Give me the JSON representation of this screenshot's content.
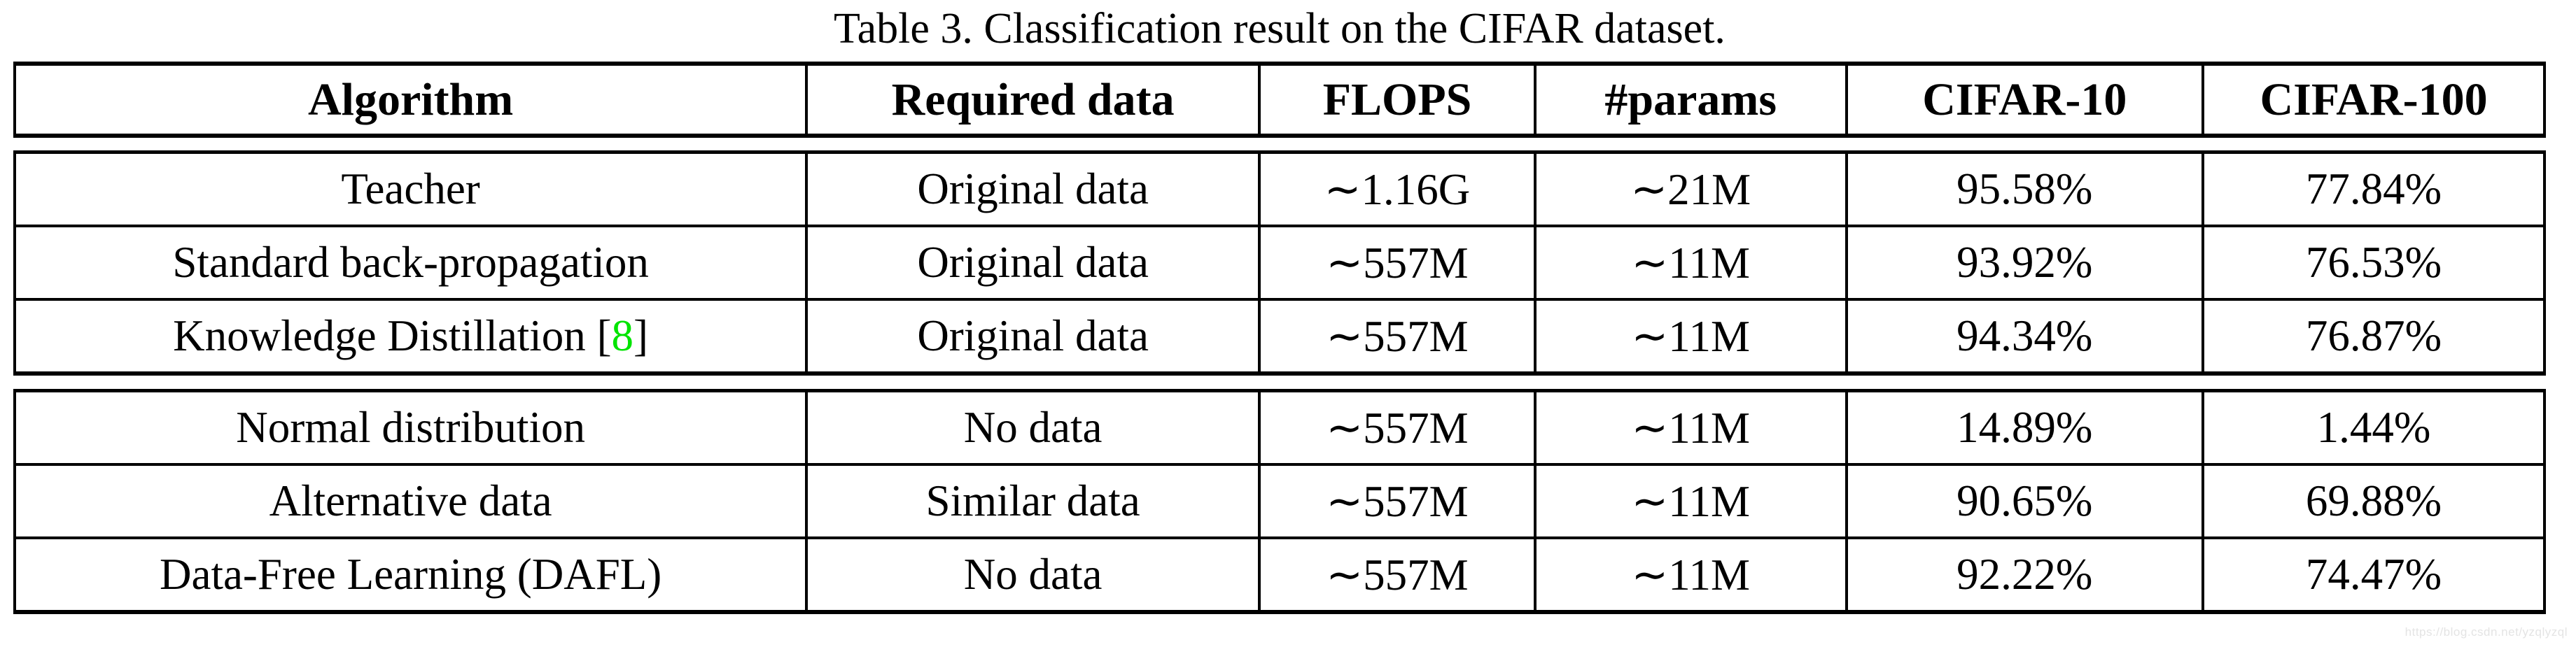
{
  "title": "Table 3. Classification result on the CIFAR dataset.",
  "watermark": "https://blog.csdn.net/yzqlyzql",
  "colors": {
    "text": "#000000",
    "citation": "#00e400",
    "watermark": "#e4e4e4",
    "border": "#000000"
  },
  "table": {
    "columns": [
      "Algorithm",
      "Required data",
      "FLOPS",
      "#params",
      "CIFAR-10",
      "CIFAR-100"
    ],
    "sections": [
      {
        "rows": [
          {
            "algorithm": "Teacher",
            "required_data": "Original data",
            "flops": "∼1.16G",
            "params": "∼21M",
            "cifar10": "95.58%",
            "cifar100": "77.84%"
          },
          {
            "algorithm": "Standard back-propagation",
            "required_data": "Original data",
            "flops": "∼557M",
            "params": "∼11M",
            "cifar10": "93.92%",
            "cifar100": "76.53%"
          },
          {
            "algorithm": "Knowledge Distillation",
            "cite_open": " [",
            "cite_num": "8",
            "cite_close": "]",
            "required_data": "Original data",
            "flops": "∼557M",
            "params": "∼11M",
            "cifar10": "94.34%",
            "cifar100": "76.87%"
          }
        ]
      },
      {
        "rows": [
          {
            "algorithm": "Normal distribution",
            "required_data": "No data",
            "flops": "∼557M",
            "params": "∼11M",
            "cifar10": "14.89%",
            "cifar100": "1.44%"
          },
          {
            "algorithm": "Alternative data",
            "required_data": "Similar data",
            "flops": "∼557M",
            "params": "∼11M",
            "cifar10": "90.65%",
            "cifar100": "69.88%"
          },
          {
            "algorithm": "Data-Free Learning (DAFL)",
            "required_data": "No data",
            "flops": "∼557M",
            "params": "∼11M",
            "cifar10": "92.22%",
            "cifar100": "74.47%"
          }
        ]
      }
    ]
  }
}
